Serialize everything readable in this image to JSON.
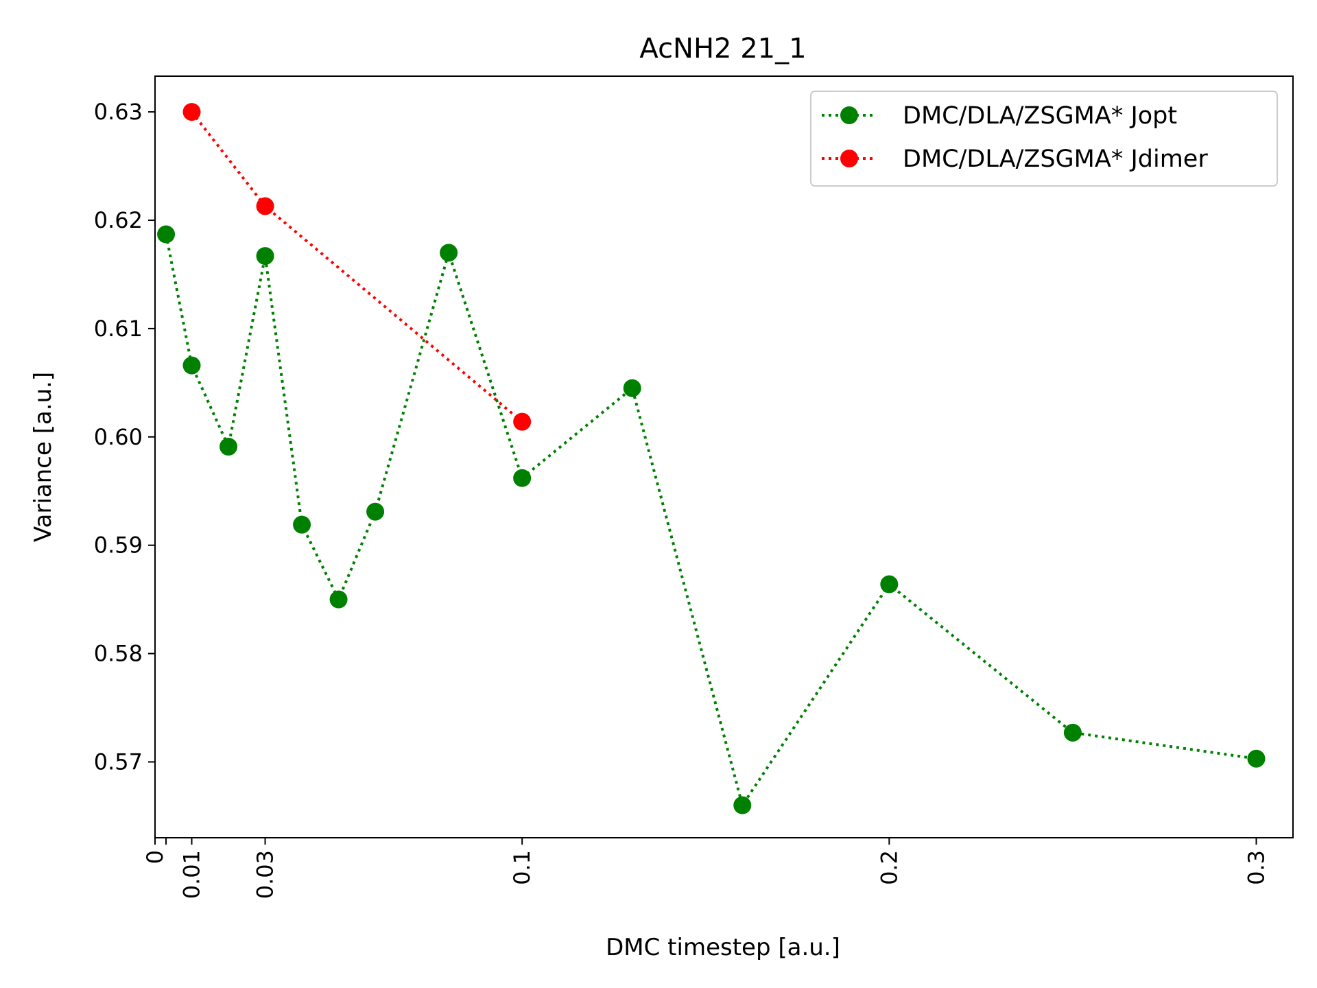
{
  "chart_data": {
    "type": "line",
    "title": "AcNH2 21_1",
    "xlabel": "DMC timestep [a.u.]",
    "ylabel": "Variance [a.u.]",
    "xlim": [
      0,
      0.31
    ],
    "ylim": [
      0.563,
      0.6333
    ],
    "x_ticks": [
      0,
      0.003,
      0.01,
      0.03,
      0.1,
      0.2,
      0.3
    ],
    "x_tick_labels": [
      "0",
      "",
      "0.01",
      "0.03",
      "0.1",
      "0.2",
      "0.3"
    ],
    "y_ticks": [
      0.57,
      0.58,
      0.59,
      0.6,
      0.61,
      0.62,
      0.63
    ],
    "y_tick_labels": [
      "0.57",
      "0.58",
      "0.59",
      "0.60",
      "0.61",
      "0.62",
      "0.63"
    ],
    "legend_position": "top-right",
    "series": [
      {
        "name": "DMC/DLA/ZSGMA* Jopt",
        "color": "#008000",
        "x": [
          0.003,
          0.01,
          0.02,
          0.03,
          0.04,
          0.05,
          0.06,
          0.08,
          0.1,
          0.13,
          0.16,
          0.2,
          0.25,
          0.3
        ],
        "y": [
          0.6187,
          0.6066,
          0.5991,
          0.6167,
          0.5919,
          0.585,
          0.5931,
          0.617,
          0.5962,
          0.6045,
          0.566,
          0.5864,
          0.5727,
          0.5703
        ]
      },
      {
        "name": "DMC/DLA/ZSGMA* Jdimer",
        "color": "#ff0000",
        "x": [
          0.01,
          0.03,
          0.1
        ],
        "y": [
          0.63,
          0.6213,
          0.6014
        ]
      }
    ]
  }
}
